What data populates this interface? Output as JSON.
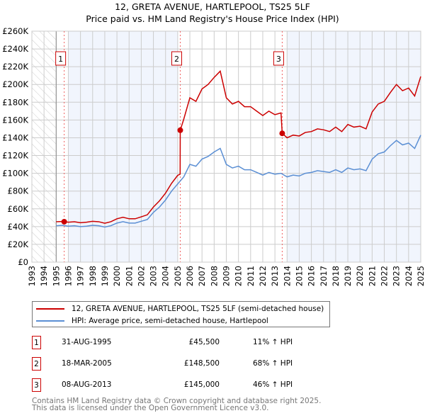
{
  "title": "12, GRETA AVENUE, HARTLEPOOL, TS25 5LF",
  "subtitle": "Price paid vs. HM Land Registry's House Price Index (HPI)",
  "chart_data": {
    "type": "line",
    "xlim": [
      1993,
      2025
    ],
    "ylim": [
      0,
      260000
    ],
    "yticks": [
      0,
      20000,
      40000,
      60000,
      80000,
      100000,
      120000,
      140000,
      160000,
      180000,
      200000,
      220000,
      240000,
      260000
    ],
    "ytick_labels": [
      "£0",
      "£20K",
      "£40K",
      "£60K",
      "£80K",
      "£100K",
      "£120K",
      "£140K",
      "£160K",
      "£180K",
      "£200K",
      "£220K",
      "£240K",
      "£260K"
    ],
    "xticks": [
      1993,
      1994,
      1995,
      1996,
      1997,
      1998,
      1999,
      2000,
      2001,
      2002,
      2003,
      2004,
      2005,
      2006,
      2007,
      2008,
      2009,
      2010,
      2011,
      2012,
      2013,
      2014,
      2015,
      2016,
      2017,
      2018,
      2019,
      2020,
      2021,
      2022,
      2023,
      2024,
      2025
    ],
    "grid": true,
    "hatched_range": [
      1993,
      1995
    ],
    "shaded_ranges": [
      [
        1996,
        2005
      ],
      [
        2014,
        2025
      ]
    ],
    "series": [
      {
        "name": "12, GRETA AVENUE, HARTLEPOOL, TS25 5LF (semi-detached house)",
        "color": "#cc0000",
        "points": [
          [
            1995,
            45500
          ],
          [
            1995.5,
            45800
          ],
          [
            1996,
            45000
          ],
          [
            1996.5,
            45500
          ],
          [
            1997,
            44400
          ],
          [
            1997.5,
            45000
          ],
          [
            1998,
            46000
          ],
          [
            1998.5,
            45500
          ],
          [
            1999,
            43800
          ],
          [
            1999.5,
            45500
          ],
          [
            2000,
            48800
          ],
          [
            2000.5,
            50500
          ],
          [
            2001,
            48800
          ],
          [
            2001.5,
            48800
          ],
          [
            2002,
            51000
          ],
          [
            2002.5,
            53300
          ],
          [
            2003,
            62000
          ],
          [
            2003.5,
            69000
          ],
          [
            2004,
            77700
          ],
          [
            2004.5,
            88800
          ],
          [
            2005,
            97700
          ],
          [
            2005.2,
            99000
          ],
          [
            2005.21,
            148500
          ],
          [
            2005.5,
            161000
          ],
          [
            2006,
            185000
          ],
          [
            2006.5,
            181000
          ],
          [
            2007,
            195000
          ],
          [
            2007.5,
            200000
          ],
          [
            2008,
            208000
          ],
          [
            2008.5,
            215000
          ],
          [
            2009,
            185000
          ],
          [
            2009.5,
            178000
          ],
          [
            2010,
            181000
          ],
          [
            2010.5,
            175000
          ],
          [
            2011,
            175000
          ],
          [
            2011.5,
            170000
          ],
          [
            2012,
            165000
          ],
          [
            2012.5,
            170000
          ],
          [
            2013,
            166000
          ],
          [
            2013.5,
            168000
          ],
          [
            2013.6,
            145000
          ],
          [
            2014,
            140000
          ],
          [
            2014.5,
            143000
          ],
          [
            2015,
            142000
          ],
          [
            2015.5,
            146000
          ],
          [
            2016,
            147000
          ],
          [
            2016.5,
            150000
          ],
          [
            2017,
            149000
          ],
          [
            2017.5,
            147000
          ],
          [
            2018,
            152000
          ],
          [
            2018.5,
            147000
          ],
          [
            2019,
            155000
          ],
          [
            2019.5,
            152000
          ],
          [
            2020,
            153000
          ],
          [
            2020.5,
            150000
          ],
          [
            2021,
            169000
          ],
          [
            2021.5,
            178000
          ],
          [
            2022,
            181000
          ],
          [
            2022.5,
            191000
          ],
          [
            2023,
            200000
          ],
          [
            2023.5,
            193000
          ],
          [
            2024,
            196000
          ],
          [
            2024.5,
            187000
          ],
          [
            2025,
            209000
          ]
        ]
      },
      {
        "name": "HPI: Average price, semi-detached house, Hartlepool",
        "color": "#5b8fd4",
        "points": [
          [
            1995,
            41000
          ],
          [
            1995.5,
            41500
          ],
          [
            1996,
            40500
          ],
          [
            1996.5,
            41000
          ],
          [
            1997,
            40000
          ],
          [
            1997.5,
            40500
          ],
          [
            1998,
            41500
          ],
          [
            1998.5,
            41000
          ],
          [
            1999,
            39500
          ],
          [
            1999.5,
            41000
          ],
          [
            2000,
            44000
          ],
          [
            2000.5,
            45500
          ],
          [
            2001,
            44000
          ],
          [
            2001.5,
            44000
          ],
          [
            2002,
            46000
          ],
          [
            2002.5,
            48000
          ],
          [
            2003,
            56000
          ],
          [
            2003.5,
            62000
          ],
          [
            2004,
            70000
          ],
          [
            2004.5,
            80000
          ],
          [
            2005,
            88000
          ],
          [
            2005.5,
            96000
          ],
          [
            2006,
            110000
          ],
          [
            2006.5,
            108000
          ],
          [
            2007,
            116000
          ],
          [
            2007.5,
            119000
          ],
          [
            2008,
            124000
          ],
          [
            2008.5,
            128000
          ],
          [
            2009,
            110000
          ],
          [
            2009.5,
            106000
          ],
          [
            2010,
            108000
          ],
          [
            2010.5,
            104000
          ],
          [
            2011,
            104000
          ],
          [
            2011.5,
            101000
          ],
          [
            2012,
            98000
          ],
          [
            2012.5,
            101000
          ],
          [
            2013,
            99000
          ],
          [
            2013.5,
            100000
          ],
          [
            2014,
            96000
          ],
          [
            2014.5,
            98000
          ],
          [
            2015,
            97000
          ],
          [
            2015.5,
            100000
          ],
          [
            2016,
            101000
          ],
          [
            2016.5,
            103000
          ],
          [
            2017,
            102000
          ],
          [
            2017.5,
            101000
          ],
          [
            2018,
            104000
          ],
          [
            2018.5,
            101000
          ],
          [
            2019,
            106000
          ],
          [
            2019.5,
            104000
          ],
          [
            2020,
            105000
          ],
          [
            2020.5,
            103000
          ],
          [
            2021,
            116000
          ],
          [
            2021.5,
            122000
          ],
          [
            2022,
            124000
          ],
          [
            2022.5,
            131000
          ],
          [
            2023,
            137000
          ],
          [
            2023.5,
            132000
          ],
          [
            2024,
            134000
          ],
          [
            2024.5,
            128000
          ],
          [
            2025,
            143000
          ]
        ]
      }
    ],
    "sales": [
      {
        "label": "1",
        "x": 1995.66,
        "y": 45500
      },
      {
        "label": "2",
        "x": 2005.21,
        "y": 148500
      },
      {
        "label": "3",
        "x": 2013.6,
        "y": 145000
      }
    ]
  },
  "legend": {
    "property": "12, GRETA AVENUE, HARTLEPOOL, TS25 5LF (semi-detached house)",
    "hpi": "HPI: Average price, semi-detached house, Hartlepool"
  },
  "transactions": [
    {
      "num": "1",
      "date": "31-AUG-1995",
      "price": "£45,500",
      "pct": "11% ↑ HPI"
    },
    {
      "num": "2",
      "date": "18-MAR-2005",
      "price": "£148,500",
      "pct": "68% ↑ HPI"
    },
    {
      "num": "3",
      "date": "08-AUG-2013",
      "price": "£145,000",
      "pct": "46% ↑ HPI"
    }
  ],
  "footer": {
    "line1": "Contains HM Land Registry data © Crown copyright and database right 2025.",
    "line2": "This data is licensed under the Open Government Licence v3.0."
  }
}
